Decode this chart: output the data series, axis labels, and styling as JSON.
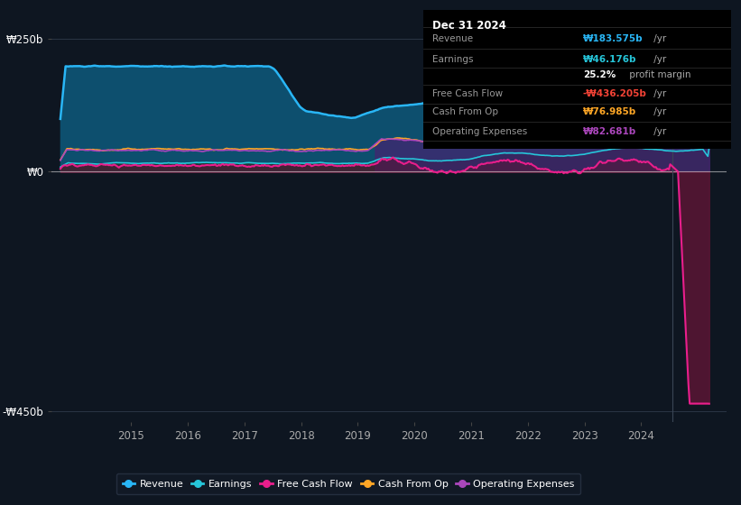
{
  "bg_color": "#0e1621",
  "plot_bg_color": "#0e1621",
  "y_label_top": "₩250b",
  "y_label_bottom": "-₩450b",
  "y_label_zero": "₩0",
  "x_ticks": [
    2015,
    2016,
    2017,
    2018,
    2019,
    2020,
    2021,
    2022,
    2023,
    2024
  ],
  "ylim": [
    -470,
    280
  ],
  "xlim_start": 2013.6,
  "xlim_end": 2025.5,
  "revenue_color": "#29b6f6",
  "earnings_color": "#26c6da",
  "free_cash_flow_color": "#e91e8c",
  "cash_from_op_color": "#ffa726",
  "operating_expenses_color": "#ab47bc",
  "revenue_fill_color": "#0d4f6e",
  "earnings_fill_pre_color": "#1a3c3c",
  "earnings_fill_post_color": "#1a3040",
  "free_cash_flow_fill_color": "#6a1040",
  "operating_expenses_fill_color": "#4a2070",
  "divider_x": 2024.55,
  "info_box": {
    "date": "Dec 31 2024",
    "rows": [
      {
        "label": "Revenue",
        "value": "₩183.575b",
        "suffix": " /yr",
        "value_color": "#29b6f6",
        "label_color": "#999999"
      },
      {
        "label": "Earnings",
        "value": "₩46.176b",
        "suffix": " /yr",
        "value_color": "#26c6da",
        "label_color": "#999999"
      },
      {
        "label": "",
        "value": "25.2%",
        "suffix": " profit margin",
        "value_color": "#ffffff",
        "label_color": "#999999"
      },
      {
        "label": "Free Cash Flow",
        "value": "-₩436.205b",
        "suffix": " /yr",
        "value_color": "#f44336",
        "label_color": "#999999"
      },
      {
        "label": "Cash From Op",
        "value": "₩76.985b",
        "suffix": " /yr",
        "value_color": "#ffa726",
        "label_color": "#999999"
      },
      {
        "label": "Operating Expenses",
        "value": "₩82.681b",
        "suffix": " /yr",
        "value_color": "#ab47bc",
        "label_color": "#999999"
      }
    ]
  },
  "legend": [
    {
      "label": "Revenue",
      "color": "#29b6f6"
    },
    {
      "label": "Earnings",
      "color": "#26c6da"
    },
    {
      "label": "Free Cash Flow",
      "color": "#e91e8c"
    },
    {
      "label": "Cash From Op",
      "color": "#ffa726"
    },
    {
      "label": "Operating Expenses",
      "color": "#ab47bc"
    }
  ]
}
